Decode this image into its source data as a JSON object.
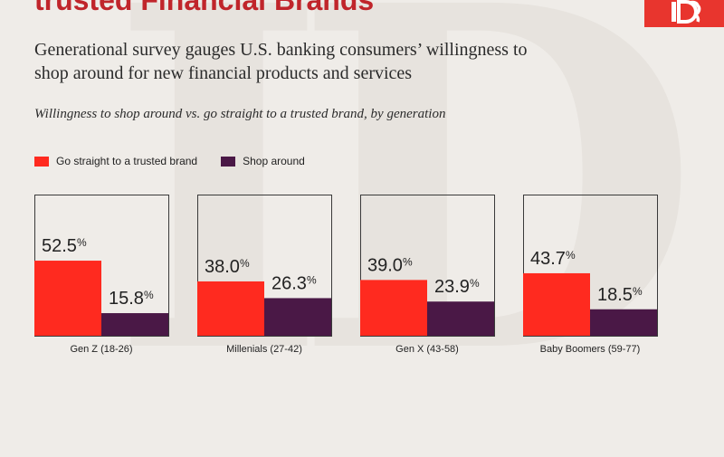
{
  "header": {
    "title": "trusted Financial Brands",
    "subtitle": "Generational survey gauges U.S. banking consumers’ willingness to shop around for new financial products and services",
    "caption": "Willingness to shop around vs. go straight to a trusted brand, by generation",
    "logo_icon": "brand-logo-icon"
  },
  "colors": {
    "trusted": "#ff2a1f",
    "shop": "#4a1846",
    "title": "#c0252b"
  },
  "chart_data": {
    "type": "bar",
    "categories": [
      "Gen Z (18-26)",
      "Millenials (27-42)",
      "Gen X (43-58)",
      "Baby Boomers (59-77)"
    ],
    "series": [
      {
        "name": "Go straight to a trusted brand",
        "values": [
          52.5,
          38.0,
          39.0,
          43.7
        ]
      },
      {
        "name": "Shop around",
        "values": [
          15.8,
          26.3,
          23.9,
          18.5
        ]
      }
    ],
    "value_suffix": "%",
    "ylim": [
      0,
      100
    ],
    "grid": false,
    "legend": "top-left"
  }
}
